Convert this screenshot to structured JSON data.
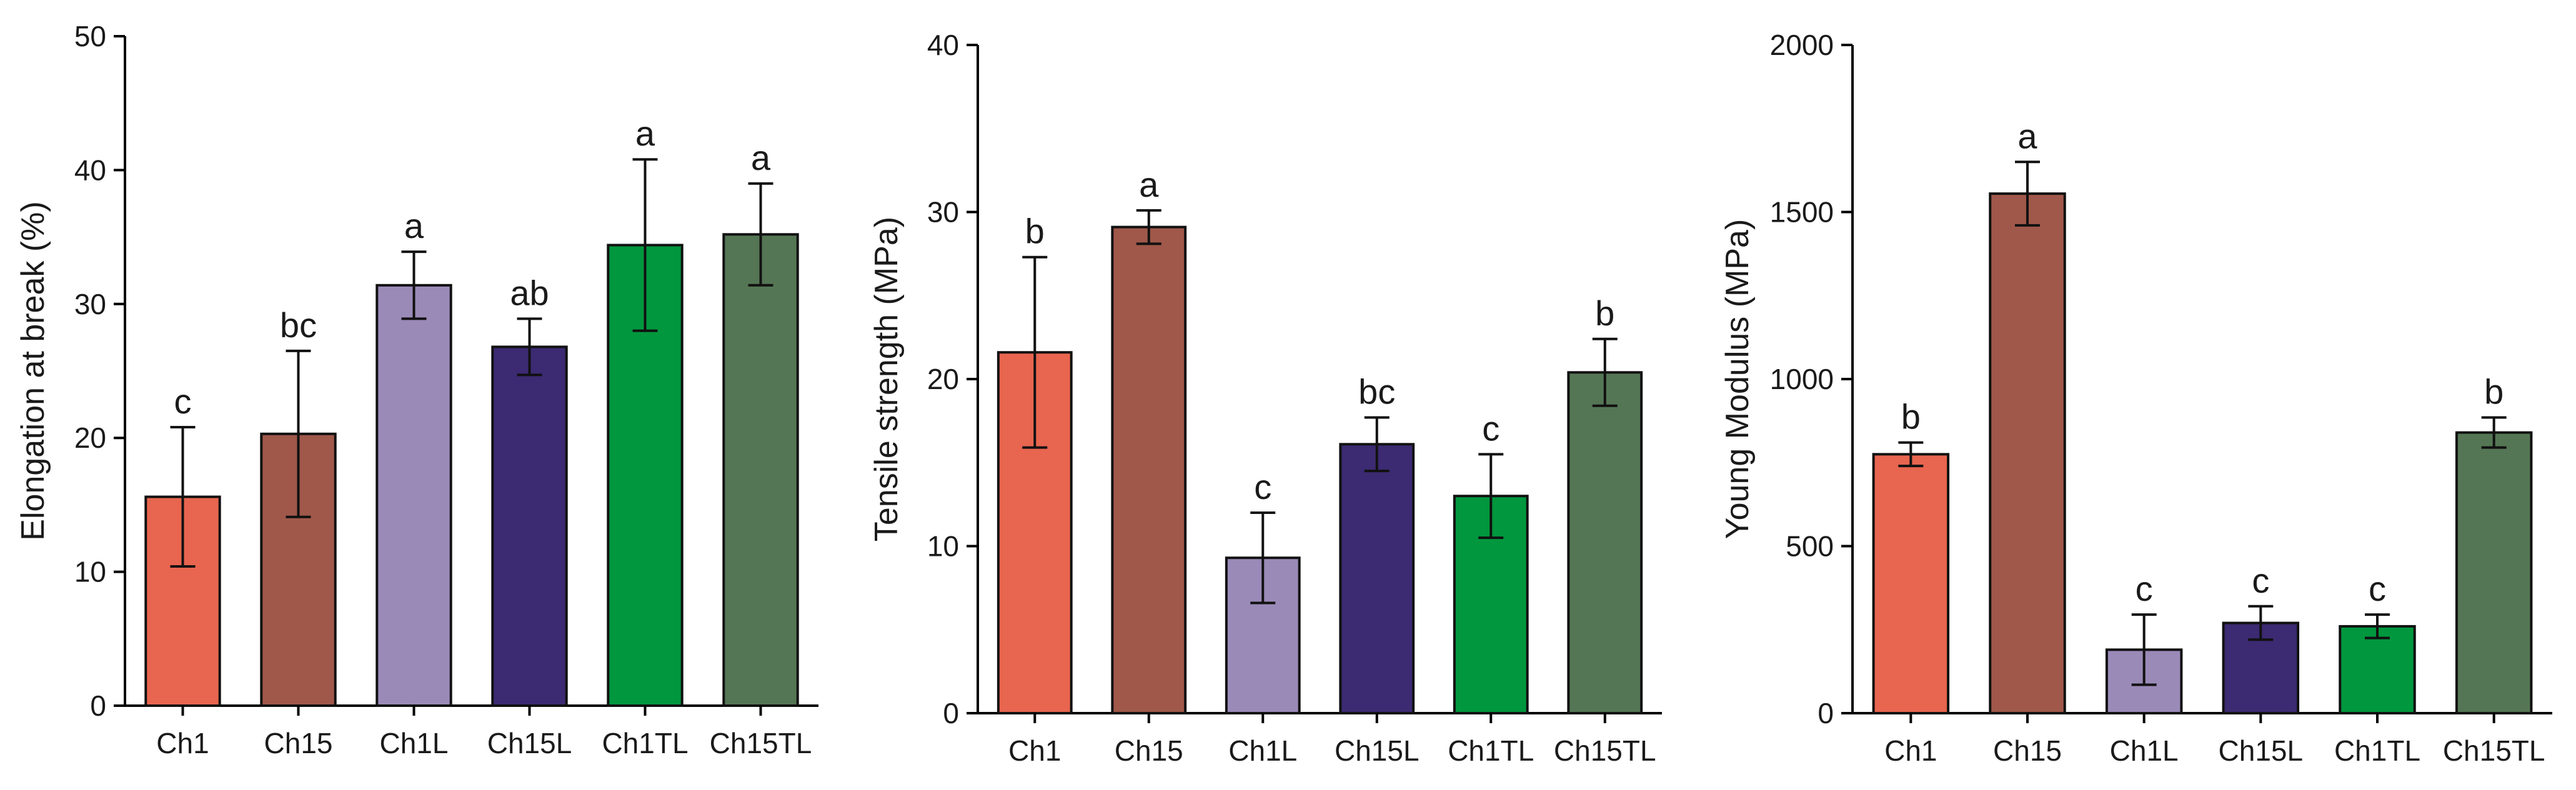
{
  "chart_data": [
    {
      "type": "bar",
      "id": "elongation",
      "categories": [
        "Ch1",
        "Ch15",
        "Ch1L",
        "Ch15L",
        "Ch1TL",
        "Ch15TL"
      ],
      "colors": [
        "#e8654f",
        "#a0584a",
        "#9a8ab8",
        "#3c2a72",
        "#00973e",
        "#557655"
      ],
      "values": [
        15.6,
        20.3,
        31.4,
        26.8,
        34.4,
        35.2
      ],
      "errors": [
        5.2,
        6.2,
        2.5,
        2.1,
        6.4,
        3.8
      ],
      "letters": [
        "c",
        "bc",
        "a",
        "ab",
        "a",
        "a"
      ],
      "ylabel": "Elongation at break (%)",
      "ylim": [
        0,
        50
      ],
      "yticks": [
        0,
        10,
        20,
        30,
        40,
        50
      ],
      "ytick_labels": [
        "0",
        "10",
        "20",
        "30",
        "40",
        "50"
      ]
    },
    {
      "type": "bar",
      "id": "tensile",
      "categories": [
        "Ch1",
        "Ch15",
        "Ch1L",
        "Ch15L",
        "Ch1TL",
        "Ch15TL"
      ],
      "colors": [
        "#e8654f",
        "#a0584a",
        "#9a8ab8",
        "#3c2a72",
        "#00973e",
        "#557655"
      ],
      "values": [
        21.6,
        29.1,
        9.3,
        16.1,
        13.0,
        20.4
      ],
      "errors": [
        5.7,
        1.0,
        2.7,
        1.6,
        2.5,
        2.0
      ],
      "letters": [
        "b",
        "a",
        "c",
        "bc",
        "c",
        "b"
      ],
      "ylabel": "Tensile strength (MPa)",
      "ylim": [
        0,
        40
      ],
      "yticks": [
        0,
        10,
        20,
        30,
        40
      ],
      "ytick_labels": [
        "0",
        "10",
        "20",
        "30",
        "40"
      ]
    },
    {
      "type": "bar",
      "id": "young",
      "categories": [
        "Ch1",
        "Ch15",
        "Ch1L",
        "Ch15L",
        "Ch1TL",
        "Ch15TL"
      ],
      "colors": [
        "#e8654f",
        "#a0584a",
        "#9a8ab8",
        "#3c2a72",
        "#00973e",
        "#557655"
      ],
      "values": [
        775,
        1555,
        190,
        270,
        260,
        840
      ],
      "errors": [
        35,
        95,
        105,
        50,
        35,
        45
      ],
      "letters": [
        "b",
        "a",
        "c",
        "c",
        "c",
        "b"
      ],
      "ylabel": "Young Modulus (MPa)",
      "ylim": [
        0,
        2000
      ],
      "yticks": [
        0,
        500,
        1000,
        1500,
        2000
      ],
      "ytick_labels": [
        "0",
        "500",
        "1000",
        "1500",
        "2000"
      ]
    }
  ]
}
